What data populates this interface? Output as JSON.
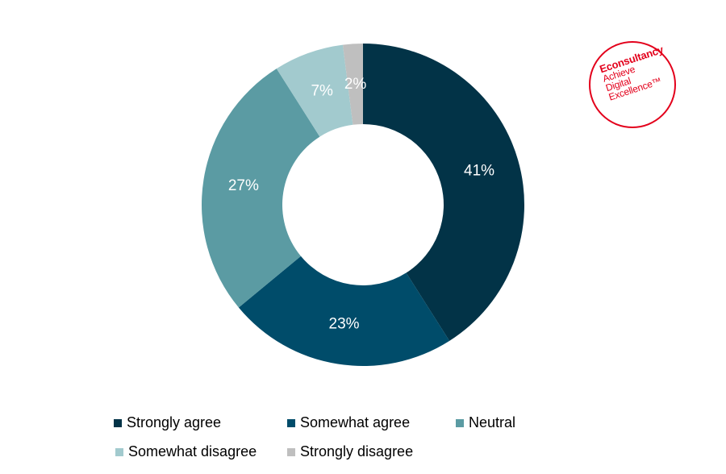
{
  "chart_data": {
    "type": "pie",
    "donut": true,
    "slices": [
      {
        "name": "Strongly agree",
        "value": 41,
        "label": "41%",
        "color": "#023347"
      },
      {
        "name": "Somewhat agree",
        "value": 23,
        "label": "23%",
        "color": "#004c6a"
      },
      {
        "name": "Neutral",
        "value": 27,
        "label": "27%",
        "color": "#5b9ba3"
      },
      {
        "name": "Somewhat disagree",
        "value": 7,
        "label": "7%",
        "color": "#a2cace"
      },
      {
        "name": "Strongly disagree",
        "value": 2,
        "label": "2%",
        "color": "#bfbfbf"
      }
    ],
    "legend_placement": "bottom"
  },
  "logo": {
    "brand": "Econsultancy",
    "tagline": [
      "Achieve",
      "Digital",
      "Excellence™"
    ],
    "color": "#e3001b"
  }
}
